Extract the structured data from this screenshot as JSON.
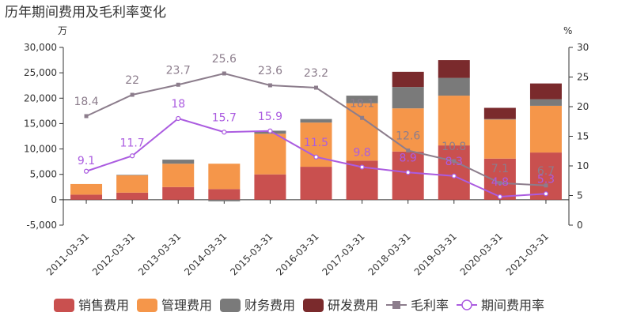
{
  "chart_data": {
    "type": "bar",
    "title": "历年期间费用及毛利率变化",
    "y_left_unit": "万",
    "y_right_unit": "%",
    "categories": [
      "2011-03-31",
      "2012-03-31",
      "2013-03-31",
      "2014-03-31",
      "2015-03-31",
      "2016-03-31",
      "2017-03-31",
      "2018-03-31",
      "2019-03-31",
      "2020-03-31",
      "2021-03-31"
    ],
    "ylim_left": [
      -5000,
      30000
    ],
    "yticks_left": [
      "-5,000",
      "0",
      "5,000",
      "10,000",
      "15,000",
      "20,000",
      "25,000",
      "30,000"
    ],
    "ylim_right": [
      0,
      30
    ],
    "yticks_right": [
      "0",
      "5",
      "10",
      "15",
      "20",
      "25",
      "30"
    ],
    "stacked_series": [
      {
        "name": "销售费用",
        "color": "#c9504f",
        "values": [
          1000,
          1400,
          2500,
          2100,
          5000,
          6500,
          7700,
          9500,
          10700,
          8100,
          9300
        ]
      },
      {
        "name": "管理费用",
        "color": "#f5964a",
        "values": [
          2100,
          3400,
          4600,
          5000,
          8000,
          8700,
          11300,
          8500,
          9800,
          7700,
          9200
        ]
      },
      {
        "name": "财务费用",
        "color": "#7a7a7a",
        "values": [
          0,
          100,
          800,
          -300,
          600,
          700,
          1500,
          4200,
          3500,
          100,
          1300
        ]
      },
      {
        "name": "研发费用",
        "color": "#7a2a2c",
        "values": [
          0,
          0,
          0,
          0,
          0,
          0,
          0,
          3000,
          3500,
          2200,
          3100
        ]
      }
    ],
    "line_series": [
      {
        "name": "毛利率",
        "color": "#8c7d8c",
        "marker": "square",
        "values": [
          18.4,
          22,
          23.7,
          25.6,
          23.6,
          23.2,
          18.1,
          12.6,
          10.8,
          7.1,
          6.7
        ],
        "labels": [
          "18.4",
          "22",
          "23.7",
          "25.6",
          "23.6",
          "23.2",
          "18.1",
          "12.6",
          "10.8",
          "7.1",
          "6.7"
        ]
      },
      {
        "name": "期间费用率",
        "color": "#ab5ce0",
        "marker": "circle",
        "values": [
          9.1,
          11.7,
          18,
          15.7,
          15.9,
          11.5,
          9.8,
          8.9,
          8.3,
          4.8,
          5.3
        ],
        "labels": [
          "9.1",
          "11.7",
          "18",
          "15.7",
          "15.9",
          "11.5",
          "9.8",
          "8.9",
          "8.3",
          "4.8",
          "5.3"
        ]
      }
    ]
  }
}
